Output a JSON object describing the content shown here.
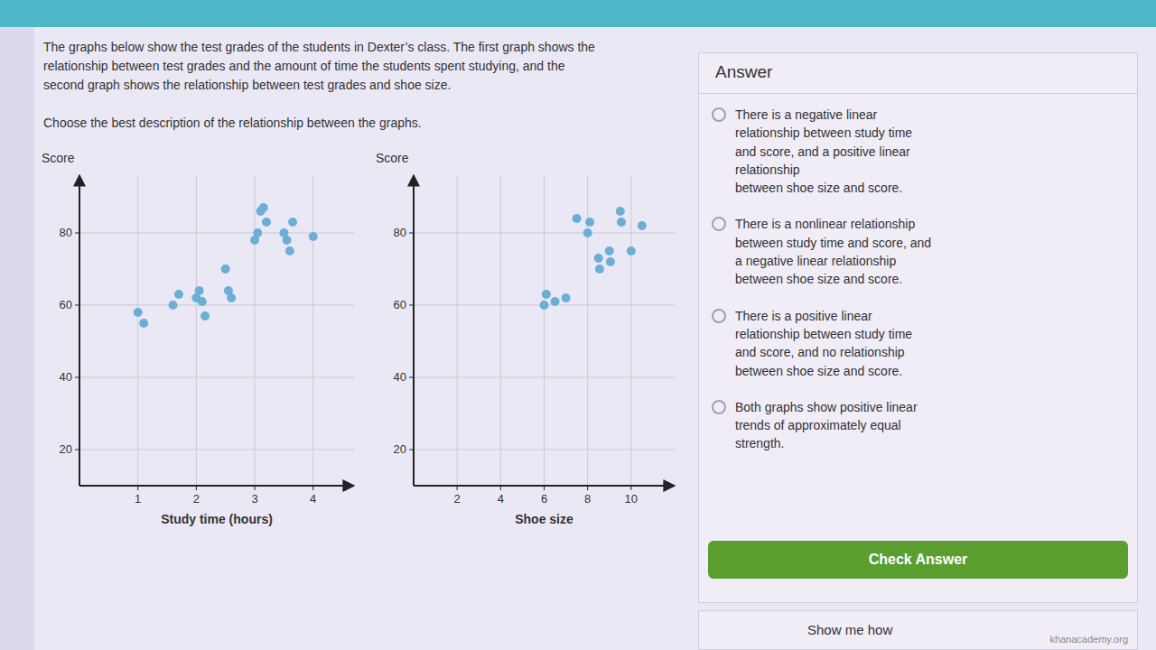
{
  "chart_data": [
    {
      "type": "scatter",
      "ylabel": "Score",
      "xlabel": "Study time (hours)",
      "x": [
        1.0,
        1.1,
        1.6,
        1.7,
        2.0,
        2.05,
        2.1,
        2.15,
        2.5,
        2.55,
        2.6,
        3.0,
        3.05,
        3.1,
        3.15,
        3.2,
        3.5,
        3.55,
        3.6,
        3.65,
        4.0
      ],
      "values": [
        58,
        55,
        60,
        63,
        62,
        64,
        61,
        57,
        70,
        64,
        62,
        78,
        80,
        86,
        87,
        83,
        80,
        78,
        75,
        83,
        79
      ],
      "xlim": [
        0,
        4.7
      ],
      "ylim": [
        10,
        96
      ],
      "xticks": [
        1,
        2,
        3,
        4
      ],
      "yticks": [
        20,
        40,
        60,
        80
      ],
      "grid": true,
      "color": "#6baed6"
    },
    {
      "type": "scatter",
      "ylabel": "Score",
      "xlabel": "Shoe size",
      "x": [
        6.0,
        6.1,
        6.5,
        7.0,
        7.5,
        8.0,
        8.1,
        8.5,
        8.55,
        9.0,
        9.05,
        9.5,
        9.55,
        10.0,
        10.5
      ],
      "values": [
        60,
        63,
        61,
        62,
        84,
        80,
        83,
        73,
        70,
        75,
        72,
        86,
        83,
        75,
        82
      ],
      "xlim": [
        0,
        12
      ],
      "ylim": [
        10,
        96
      ],
      "xticks": [
        2,
        4,
        6,
        8,
        10
      ],
      "yticks": [
        20,
        40,
        60,
        80
      ],
      "grid": true,
      "color": "#6baed6"
    }
  ],
  "page": {
    "body_text": [
      "The graphs below show the test grades of the students in Dexter’s class. The first graph shows the",
      "relationship between test grades and the amount of time the students spent studying, and the",
      "second graph shows the relationship between test grades and shoe size."
    ],
    "question": "Choose the best description of the relationship between the graphs.",
    "answer_title": "Answer",
    "options": [
      "There is a negative linear\nrelationship between study time\nand score, and a positive linear\nrelationship\nbetween shoe size and score.",
      "There is a nonlinear relationship\nbetween study time and score, and\na negative linear relationship\nbetween shoe size and score.",
      "There is a positive linear\nrelationship between study time\nand score, and no relationship\nbetween shoe size and score.",
      "Both graphs show positive linear\ntrends of approximately equal\nstrength."
    ],
    "check_button": "Check Answer",
    "show_me_how": "Show me how",
    "logo": "khanacademy.org"
  }
}
